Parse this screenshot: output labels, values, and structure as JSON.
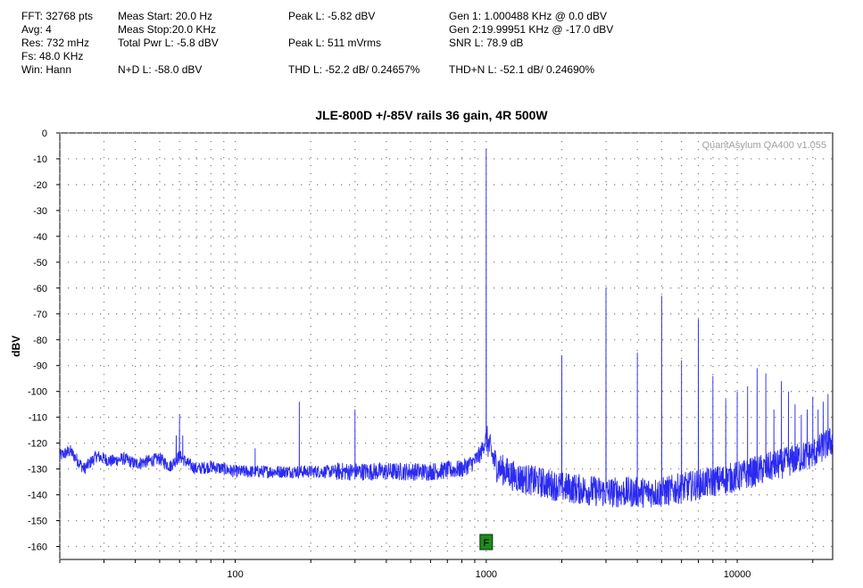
{
  "stats": {
    "fft": "FFT: 32768 pts",
    "avg": "Avg: 4",
    "res": "Res: 732 mHz",
    "fs": "Fs: 48.0 KHz",
    "win": "Win: Hann",
    "meas_start": "Meas Start: 20.0 Hz",
    "meas_stop": "Meas Stop:20.0 KHz",
    "total_pwr": "Total Pwr L: -5.8 dBV",
    "nd": "N+D L: -58.0 dBV",
    "peak_dbv": "Peak L: -5.82 dBV",
    "peak_mvrms": "Peak L: 511 mVrms",
    "thd": "THD L: -52.2 dB/ 0.24657%",
    "gen1": "Gen 1: 1.000488 KHz @ 0.0  dBV",
    "gen2": "Gen 2:19.99951 KHz @ -17.0  dBV",
    "snr": "SNR L: 78.9 dB",
    "thdn": "THD+N L: -52.1 dB/ 0.24690%"
  },
  "chart_data": {
    "type": "line",
    "title": "JLE-800D +/-85V rails 36 gain, 4R 500W",
    "watermark": "QuantAsylum QA400 v1.055",
    "ylabel": "dBV",
    "xlabel": "",
    "x_scale": "log",
    "xlim": [
      20,
      24000
    ],
    "ylim": [
      -165,
      0
    ],
    "y_ticks": [
      0,
      -10,
      -20,
      -30,
      -40,
      -50,
      -60,
      -70,
      -80,
      -90,
      -100,
      -110,
      -120,
      -130,
      -140,
      -150,
      -160
    ],
    "y_tick_labels": [
      "0",
      "-10",
      "-20",
      "-30",
      "-40",
      "-50",
      "-60",
      "-70",
      "-80",
      "-90",
      "-100",
      "-110",
      "-120",
      "-130",
      "-140",
      "-150",
      "-160"
    ],
    "x_ticks": [
      100,
      1000,
      10000
    ],
    "x_tick_labels": [
      "100",
      "1000",
      "10000"
    ],
    "grid": "dotted",
    "series_color": "#2b2bf0",
    "marker": {
      "label": "F",
      "x": 1000,
      "color": "#1f8a1f"
    },
    "series": [
      {
        "noise_floor": [
          [
            20,
            -125
          ],
          [
            22,
            -123
          ],
          [
            25,
            -130
          ],
          [
            28,
            -125
          ],
          [
            32,
            -127
          ],
          [
            36,
            -126
          ],
          [
            40,
            -128
          ],
          [
            45,
            -127
          ],
          [
            50,
            -126
          ],
          [
            55,
            -129
          ],
          [
            60,
            -125
          ],
          [
            65,
            -128
          ],
          [
            70,
            -130
          ],
          [
            80,
            -129
          ],
          [
            90,
            -130
          ],
          [
            100,
            -131
          ],
          [
            120,
            -131
          ],
          [
            150,
            -131
          ],
          [
            200,
            -131
          ],
          [
            300,
            -131
          ],
          [
            400,
            -131
          ],
          [
            600,
            -131
          ],
          [
            800,
            -130
          ],
          [
            900,
            -127
          ],
          [
            950,
            -124
          ],
          [
            1000,
            -118
          ],
          [
            1050,
            -124
          ],
          [
            1100,
            -129
          ],
          [
            1300,
            -133
          ],
          [
            2000,
            -137
          ],
          [
            3000,
            -139
          ],
          [
            5000,
            -139
          ],
          [
            7000,
            -136
          ],
          [
            10000,
            -133
          ],
          [
            15000,
            -128
          ],
          [
            20000,
            -124
          ],
          [
            24000,
            -119
          ]
        ],
        "peaks": [
          [
            60,
            -109
          ],
          [
            120,
            -122
          ],
          [
            180,
            -104
          ],
          [
            300,
            -107
          ],
          [
            1000,
            -6
          ],
          [
            2000,
            -86
          ],
          [
            3000,
            -60
          ],
          [
            4000,
            -85
          ],
          [
            5000,
            -63
          ],
          [
            6000,
            -88
          ],
          [
            7000,
            -72
          ],
          [
            8000,
            -94
          ],
          [
            9000,
            -103
          ],
          [
            10000,
            -100
          ],
          [
            11000,
            -98
          ],
          [
            12000,
            -91
          ],
          [
            13000,
            -93
          ],
          [
            14000,
            -107
          ],
          [
            15000,
            -96
          ],
          [
            16000,
            -100
          ],
          [
            17000,
            -105
          ],
          [
            18000,
            -109
          ],
          [
            19000,
            -107
          ],
          [
            20000,
            -102
          ],
          [
            21000,
            -107
          ],
          [
            22000,
            -104
          ],
          [
            23000,
            -101
          ]
        ]
      }
    ]
  }
}
